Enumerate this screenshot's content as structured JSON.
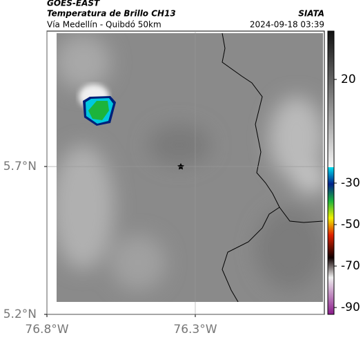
{
  "chart_data": {
    "type": "map",
    "title": "GOES-EAST",
    "subtitle": "Temperatura de Brillo CH13",
    "route": "Vía Medellín - Quibdó 50km",
    "source": "SIATA",
    "timestamp": "2024-09-18 03:39",
    "xlim": [
      -76.8,
      -75.865
    ],
    "ylim": [
      5.2,
      6.158
    ],
    "xticks": [
      {
        "value": -76.8,
        "label": "76.8°W"
      },
      {
        "value": -76.3,
        "label": "76.3°W"
      }
    ],
    "yticks": [
      {
        "value": 5.2,
        "label": "5.2°N"
      },
      {
        "value": 5.7,
        "label": "5.7°N"
      }
    ],
    "grid": true,
    "colorbar": {
      "lim": [
        -93.3,
        43.3
      ],
      "ticks": [
        20,
        -30,
        -50,
        -70,
        -90
      ]
    }
  }
}
